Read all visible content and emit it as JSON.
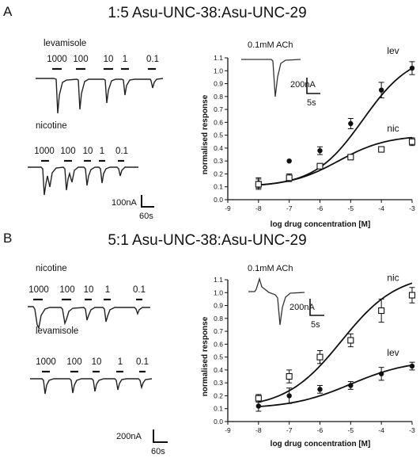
{
  "panels": [
    {
      "letter": "A",
      "title": "1:5 Asu-UNC-38:Asu-UNC-29",
      "traces": [
        {
          "label": "levamisole",
          "doses": [
            "1000",
            "100",
            "10",
            "1",
            "0.1"
          ]
        },
        {
          "label": "nicotine",
          "doses": [
            "1000",
            "100",
            "10",
            "1",
            "0.1"
          ]
        }
      ],
      "trace_scale": {
        "current": "100nA",
        "time": "60s"
      },
      "ach_label": "0.1mM ACh",
      "ach_scale": {
        "current": "200nA",
        "time": "5s"
      }
    },
    {
      "letter": "B",
      "title": "5:1 Asu-UNC-38:Asu-UNC-29",
      "traces": [
        {
          "label": "nicotine",
          "doses": [
            "1000",
            "100",
            "10",
            "1",
            "0.1"
          ]
        },
        {
          "label": "levamisole",
          "doses": [
            "1000",
            "100",
            "10",
            "1",
            "0.1"
          ]
        }
      ],
      "trace_scale": {
        "current": "200nA",
        "time": "60s"
      },
      "ach_label": "0.1mM ACh",
      "ach_scale": {
        "current": "200nA",
        "time": "5s"
      }
    }
  ],
  "chart_data": [
    {
      "type": "scatter",
      "xlabel": "log drug concentration [M]",
      "ylabel": "normalised response",
      "xlim": [
        -9,
        -3
      ],
      "ylim": [
        0,
        1.1
      ],
      "xticks": [
        "-9",
        "-8",
        "-7",
        "-6",
        "-5",
        "-4",
        "-3"
      ],
      "yticks": [
        "0.0",
        "0.1",
        "0.2",
        "0.3",
        "0.4",
        "0.5",
        "0.6",
        "0.7",
        "0.8",
        "0.9",
        "1.0",
        "1.1"
      ],
      "series": [
        {
          "name": "lev",
          "marker": "filled-circle",
          "x": [
            -8,
            -7,
            -6,
            -5,
            -4,
            -3
          ],
          "y": [
            0.13,
            0.3,
            0.38,
            0.59,
            0.85,
            1.02
          ],
          "err": [
            0.04,
            0.0,
            0.03,
            0.04,
            0.06,
            0.05
          ],
          "fit": {
            "bottom": 0.1,
            "top": 1.14,
            "logec50": -4.6,
            "hill": 0.55
          }
        },
        {
          "name": "nic",
          "marker": "open-square",
          "x": [
            -8,
            -7,
            -6,
            -5,
            -4,
            -3
          ],
          "y": [
            0.12,
            0.17,
            0.26,
            0.33,
            0.39,
            0.45
          ],
          "err": [
            0.04,
            0.03,
            0.02,
            0.02,
            0.02,
            0.03
          ],
          "fit": {
            "bottom": 0.1,
            "top": 0.5,
            "logec50": -5.4,
            "hill": 0.55
          }
        }
      ]
    },
    {
      "type": "scatter",
      "xlabel": "log drug concentration [M]",
      "ylabel": "normalised response",
      "xlim": [
        -9,
        -3
      ],
      "ylim": [
        0,
        1.1
      ],
      "xticks": [
        "-9",
        "-8",
        "-7",
        "-6",
        "-5",
        "-4",
        "-3"
      ],
      "yticks": [
        "0.0",
        "0.1",
        "0.2",
        "0.3",
        "0.4",
        "0.5",
        "0.6",
        "0.7",
        "0.8",
        "0.9",
        "1.0",
        "1.1"
      ],
      "series": [
        {
          "name": "nic",
          "marker": "open-square",
          "x": [
            -8,
            -7,
            -6,
            -5,
            -4,
            -3
          ],
          "y": [
            0.18,
            0.35,
            0.5,
            0.63,
            0.86,
            0.98
          ],
          "err": [
            0.03,
            0.05,
            0.05,
            0.05,
            0.09,
            0.06
          ],
          "fit": {
            "bottom": 0.1,
            "top": 1.15,
            "logec50": -5.3,
            "hill": 0.48
          }
        },
        {
          "name": "lev",
          "marker": "filled-circle",
          "x": [
            -8,
            -7,
            -6,
            -5,
            -4,
            -3
          ],
          "y": [
            0.12,
            0.2,
            0.25,
            0.28,
            0.37,
            0.43
          ],
          "err": [
            0.04,
            0.06,
            0.03,
            0.03,
            0.05,
            0.03
          ],
          "fit": {
            "bottom": 0.1,
            "top": 0.48,
            "logec50": -5.0,
            "hill": 0.45
          }
        }
      ]
    }
  ]
}
